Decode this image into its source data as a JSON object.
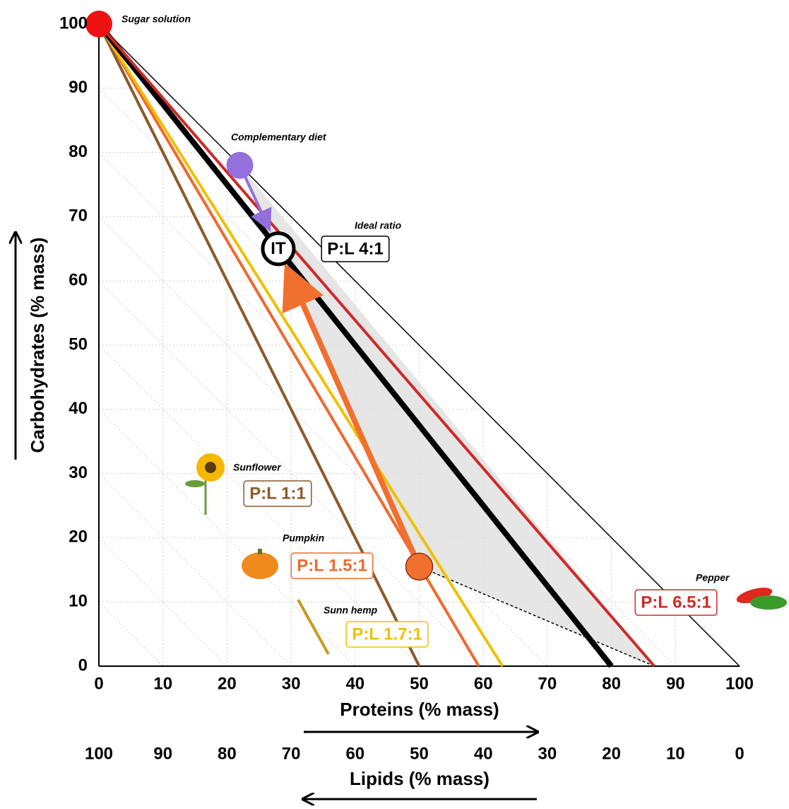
{
  "chart_data": {
    "type": "line",
    "xlabel": "Proteins (% mass)",
    "ylabel": "Carbohydrates (% mass)",
    "x2label": "Lipids (% mass)",
    "xlim": [
      0,
      100
    ],
    "xticks": [
      0,
      10,
      20,
      30,
      40,
      50,
      60,
      70,
      80,
      90,
      100
    ],
    "ylim": [
      0,
      100
    ],
    "yticks": [
      0,
      10,
      20,
      30,
      40,
      50,
      60,
      70,
      80,
      90,
      100
    ],
    "x2lim": [
      100,
      0
    ],
    "x2ticks": [
      100,
      90,
      80,
      70,
      60,
      50,
      40,
      30,
      20,
      10,
      0
    ],
    "grid": true,
    "series": [
      {
        "name": "P:L 1:1",
        "source": "Sunflower",
        "color": "#8b5a2b",
        "x": [
          0,
          50
        ],
        "y": [
          100,
          0
        ]
      },
      {
        "name": "P:L 1.5:1",
        "source": "Pumpkin",
        "color": "#ee6a30",
        "x": [
          0,
          59.3
        ],
        "y": [
          100,
          0
        ]
      },
      {
        "name": "P:L 1.7:1",
        "source": "Sunn hemp",
        "color": "#f0c000",
        "x": [
          0,
          63
        ],
        "y": [
          100,
          0
        ]
      },
      {
        "name": "P:L 4:1",
        "source": "Ideal ratio",
        "color": "#000000",
        "x": [
          0,
          80
        ],
        "y": [
          100,
          0
        ]
      },
      {
        "name": "P:L 6.5:1",
        "source": "Pepper",
        "color": "#d02828",
        "x": [
          0,
          86.7
        ],
        "y": [
          100,
          0
        ]
      }
    ],
    "points": [
      {
        "label": "Sugar solution",
        "x": 0,
        "y": 100,
        "color": "#ee1111"
      },
      {
        "label": "Complementary diet",
        "x": 22,
        "y": 78,
        "color": "#9370db"
      },
      {
        "label": "IT",
        "x": 28,
        "y": 65,
        "color": "#ffffff"
      },
      {
        "x": 50,
        "y": 15.5,
        "color": "#f07030"
      }
    ]
  }
}
